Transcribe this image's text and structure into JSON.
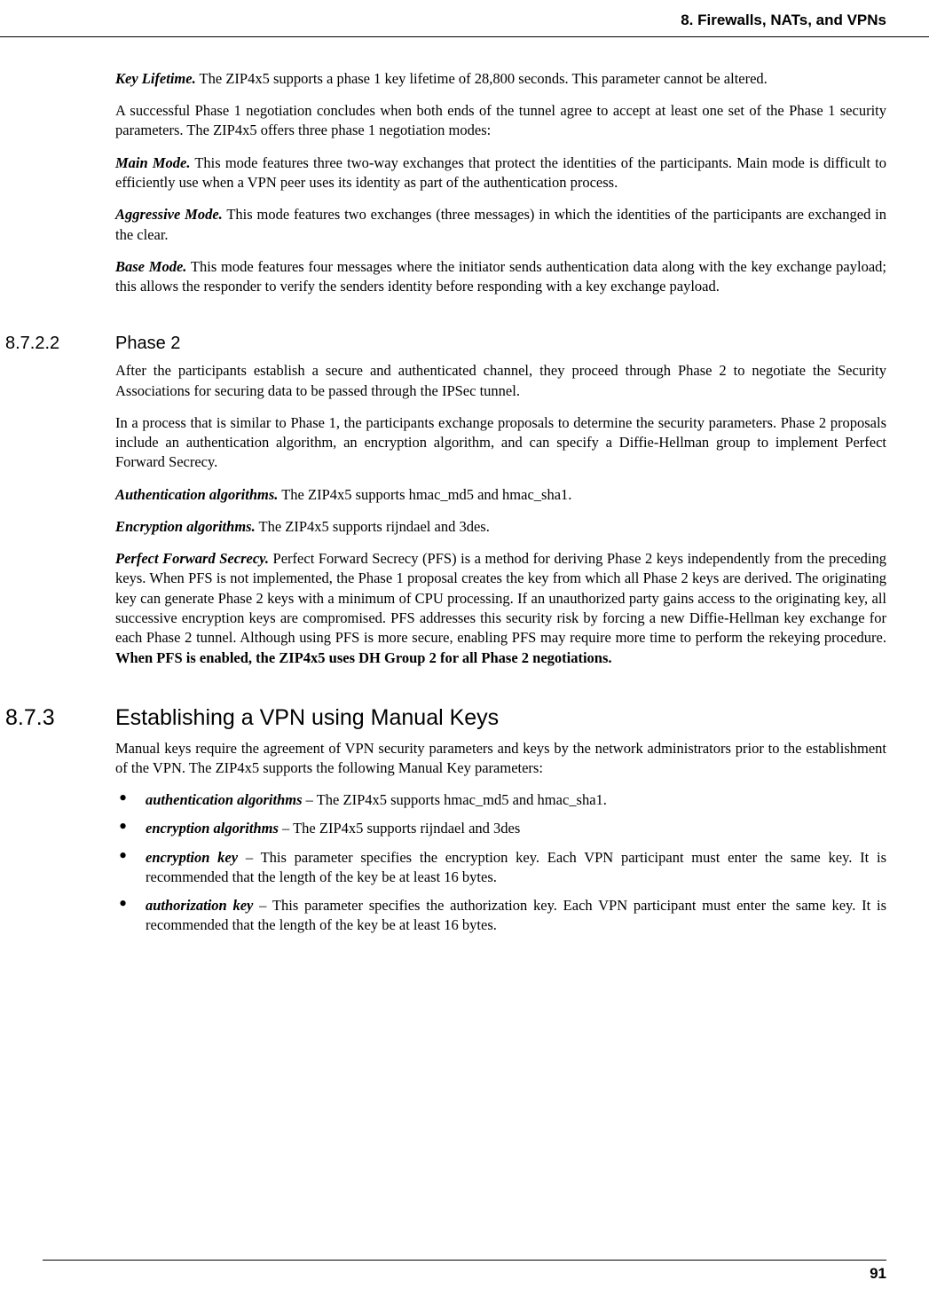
{
  "header": {
    "chapter_title": "8. Firewalls, NATs, and VPNs"
  },
  "footer": {
    "page_number": "91"
  },
  "intro": {
    "p1_lead": "Key Lifetime.",
    "p1_rest": " The ZIP4x5 supports a phase 1 key lifetime of 28,800 seconds. This parameter cannot be altered.",
    "p2": "A successful Phase 1 negotiation concludes when both ends of the tunnel agree to accept at least one set of the Phase 1 security parameters. The ZIP4x5 offers three phase 1 negotiation modes:",
    "p3_lead": "Main Mode.",
    "p3_rest": " This mode features three two-way exchanges that protect the identities of the participants. Main mode is difficult to efficiently use when a VPN peer uses its identity as part of the authentication process.",
    "p4_lead": "Aggressive Mode.",
    "p4_rest": " This mode features two exchanges (three messages) in which the identities of the participants are exchanged in the clear.",
    "p5_lead": "Base Mode.",
    "p5_rest": " This mode features four messages where the initiator sends authentication data along with the key exchange payload; this allows the responder to verify the senders identity before responding with a key exchange payload."
  },
  "sec_phase2": {
    "num": "8.7.2.2",
    "title": "Phase 2",
    "p1": "After the participants establish a secure and authenticated channel, they proceed through Phase 2 to negotiate the Security Associations for securing data to be passed through the IPSec tunnel.",
    "p2": "In a process that is similar to Phase 1, the participants exchange proposals to determine the security parameters. Phase 2 proposals include an authentication algorithm, an encryption algorithm, and can specify a Diffie-Hellman group to implement Perfect Forward Secrecy.",
    "p3_lead": "Authentication algorithms.",
    "p3_rest": " The ZIP4x5 supports hmac_md5 and hmac_sha1.",
    "p4_lead": "Encryption algorithms.",
    "p4_rest": " The ZIP4x5 supports rijndael and 3des.",
    "p5_lead": "Perfect Forward Secrecy.",
    "p5_mid": " Perfect Forward Secrecy (PFS) is a method for deriving Phase 2 keys independently from the preceding keys. When PFS is not implemented, the Phase 1 proposal creates the key from which all Phase 2 keys are derived. The originating key can generate Phase 2 keys with a minimum of CPU processing. If an unauthorized party gains access to the originating key, all successive encryption keys are compromised. PFS addresses this security risk by forcing a new Diffie-Hellman key exchange for each Phase 2 tunnel. Although using PFS is more secure, enabling PFS may require more time to perform the rekeying procedure. ",
    "p5_bold": "When PFS is enabled, the ZIP4x5 uses DH Group 2 for all Phase 2 negotiations."
  },
  "sec_manual": {
    "num": "8.7.3",
    "title": "Establishing a VPN using Manual Keys",
    "p1": "Manual keys require the agreement of VPN security parameters and keys by the network administrators prior to the establishment of the VPN. The ZIP4x5 supports the following Manual Key parameters:",
    "b1_lead": "authentication algorithms",
    "b1_rest": " – The ZIP4x5 supports hmac_md5 and hmac_sha1.",
    "b2_lead": "encryption algorithms",
    "b2_rest": " – The ZIP4x5 supports rijndael and 3des",
    "b3_lead": "encryption key",
    "b3_rest": " – This parameter specifies the encryption key. Each VPN participant must enter the same key. It is recommended that the length of the key be at least 16 bytes.",
    "b4_lead": "authorization key",
    "b4_rest": " – This parameter specifies the authorization key. Each VPN participant must enter the same key. It is recommended that the length of the key be at least 16 bytes."
  }
}
